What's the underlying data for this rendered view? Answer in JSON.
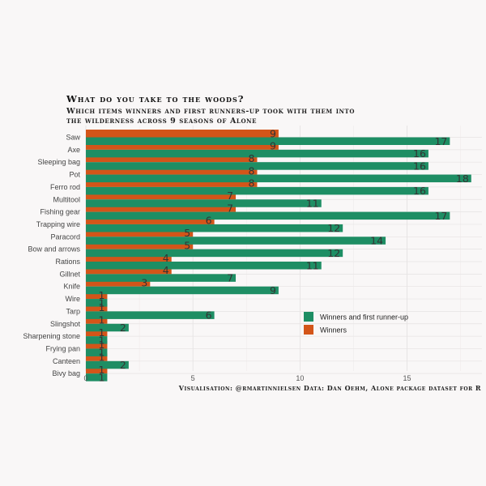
{
  "chart_data": {
    "type": "bar",
    "orientation": "horizontal",
    "title": "What do you take to the woods?",
    "subtitle_lines": [
      "Which items winners and first runners-up took with them into",
      "the wilderness across 9 seasons of Alone"
    ],
    "caption": "Visualisation: @rmartinnielsen Data: Dan Oehm, Alone package dataset for R",
    "categories": [
      "Saw",
      "Axe",
      "Sleeping bag",
      "Pot",
      "Ferro rod",
      "Multitool",
      "Fishing gear",
      "Trapping wire",
      "Paracord",
      "Bow and arrows",
      "Rations",
      "Gillnet",
      "Knife",
      "Wire",
      "Tarp",
      "Slingshot",
      "Sharpening stone",
      "Frying pan",
      "Canteen",
      "Bivy bag"
    ],
    "series": [
      {
        "name": "Winners",
        "color": "#d35519",
        "values": [
          9,
          9,
          8,
          8,
          8,
          7,
          7,
          6,
          5,
          5,
          4,
          4,
          3,
          1,
          1,
          1,
          1,
          1,
          1,
          1
        ]
      },
      {
        "name": "Winners and first runner-up",
        "color": "#1e8e64",
        "values": [
          17,
          16,
          16,
          18,
          16,
          11,
          17,
          12,
          14,
          12,
          11,
          7,
          9,
          1,
          6,
          2,
          1,
          1,
          2,
          1
        ]
      }
    ],
    "xticks": [
      0,
      5,
      10,
      15
    ],
    "xlim": [
      0,
      18.5
    ],
    "grid": true,
    "legend_position": "bottom-right"
  }
}
